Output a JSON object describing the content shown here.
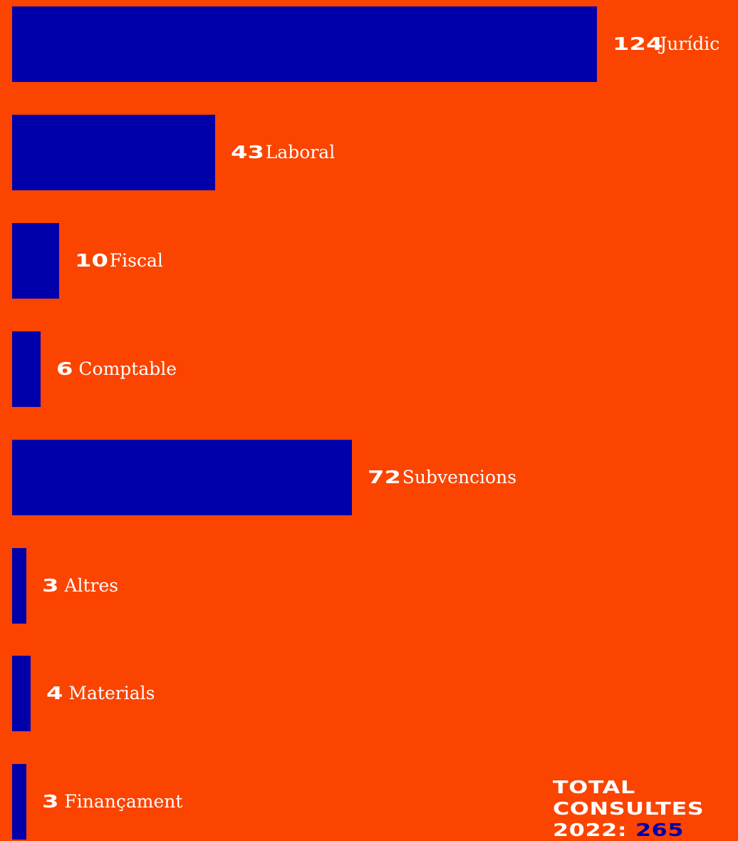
{
  "chart_data": {
    "type": "bar",
    "orientation": "horizontal",
    "categories": [
      "Jurídic",
      "Laboral",
      "Fiscal",
      "Comptable",
      "Subvencions",
      "Altres",
      "Materials",
      "Finançament"
    ],
    "values": [
      124,
      43,
      10,
      6,
      72,
      3,
      4,
      3
    ],
    "xlim": [
      0,
      124
    ],
    "grid": false,
    "legend": "none",
    "colors": {
      "background": "#fb4400",
      "bar": "#0000aa",
      "text": "#ffffff"
    }
  },
  "total": {
    "line1": "TOTAL",
    "line2": "CONSULTES",
    "line3_prefix": "2022:",
    "value": "265"
  }
}
